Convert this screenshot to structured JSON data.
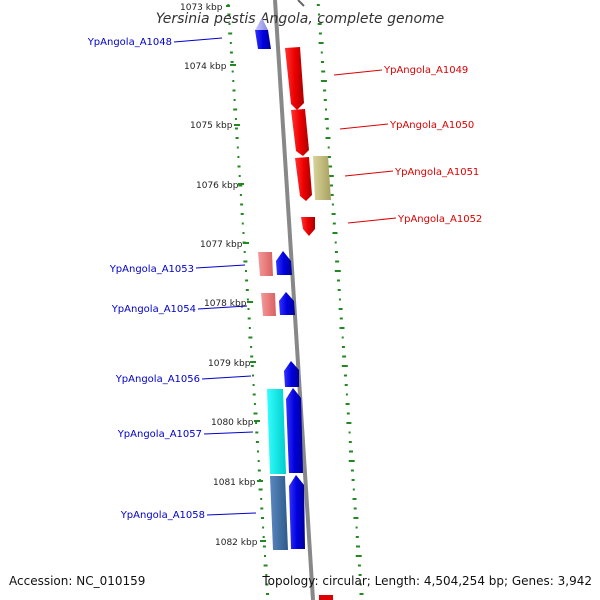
{
  "title": "Yersinia pestis Angola, complete genome",
  "footer": {
    "accession": "Accession: NC_010159",
    "topology": "Topology: circular; Length: 4,504,254 bp; Genes: 3,942"
  },
  "ticks": [
    "1073 kbp",
    "1074 kbp",
    "1075 kbp",
    "1076 kbp",
    "1077 kbp",
    "1078 kbp",
    "1079 kbp",
    "1080 kbp",
    "1081 kbp",
    "1082 kbp"
  ],
  "colors": {
    "forward": "#dd0000",
    "reverse": "#0000cc",
    "backbone": "#888888",
    "gc_dots": "#228822"
  },
  "labels": {
    "a1048": "YpAngola_A1048",
    "a1049": "YpAngola_A1049",
    "a1050": "YpAngola_A1050",
    "a1051": "YpAngola_A1051",
    "a1052": "YpAngola_A1052",
    "a1053": "YpAngola_A1053",
    "a1054": "YpAngola_A1054",
    "a1056": "YpAngola_A1056",
    "a1057": "YpAngola_A1057",
    "a1058": "YpAngola_A1058"
  }
}
